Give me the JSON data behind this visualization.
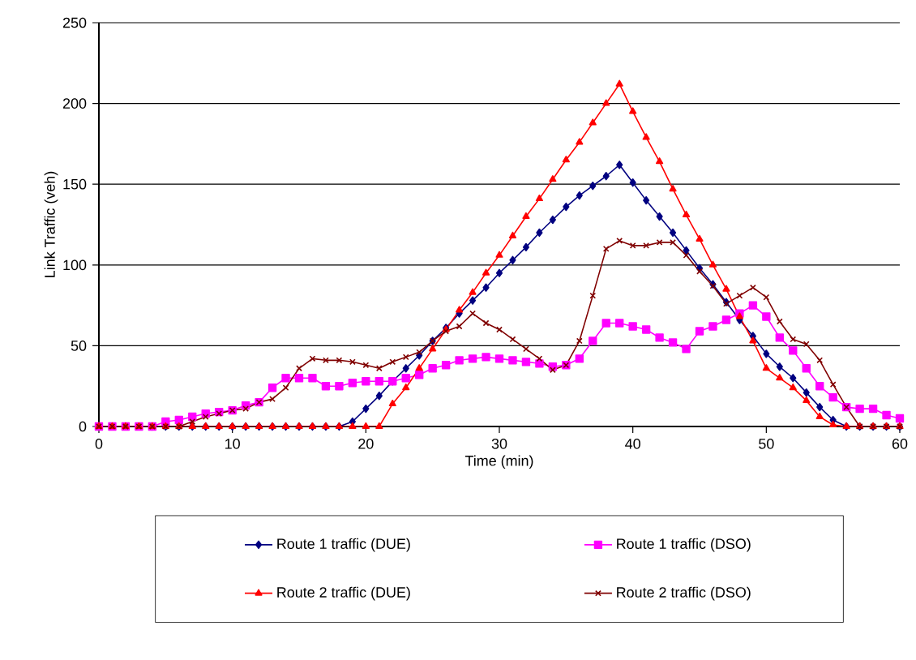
{
  "chart_data": {
    "type": "line",
    "xlabel": "Time (min)",
    "ylabel": "Link Traffic (veh)",
    "x": [
      0,
      1,
      2,
      3,
      4,
      5,
      6,
      7,
      8,
      9,
      10,
      11,
      12,
      13,
      14,
      15,
      16,
      17,
      18,
      19,
      20,
      21,
      22,
      23,
      24,
      25,
      26,
      27,
      28,
      29,
      30,
      31,
      32,
      33,
      34,
      35,
      36,
      37,
      38,
      39,
      40,
      41,
      42,
      43,
      44,
      45,
      46,
      47,
      48,
      49,
      50,
      51,
      52,
      53,
      54,
      55,
      56,
      57,
      58,
      59,
      60
    ],
    "series": [
      {
        "name": "Route 1 traffic (DUE)",
        "color": "#000080",
        "marker": "diamond",
        "values": [
          null,
          null,
          null,
          null,
          0,
          0,
          0,
          0,
          0,
          0,
          0,
          0,
          0,
          0,
          0,
          0,
          0,
          0,
          0,
          3,
          11,
          19,
          28,
          36,
          44,
          53,
          61,
          70,
          78,
          86,
          95,
          103,
          111,
          120,
          128,
          136,
          143,
          149,
          155,
          162,
          151,
          140,
          130,
          120,
          109,
          98,
          88,
          77,
          66,
          56,
          45,
          37,
          30,
          21,
          12,
          4,
          0,
          0,
          0,
          0,
          0
        ]
      },
      {
        "name": "Route 1 traffic (DSO)",
        "color": "#ff00ff",
        "marker": "square",
        "values": [
          0,
          0,
          0,
          0,
          0,
          3,
          4,
          6,
          8,
          9,
          10,
          13,
          15,
          24,
          30,
          30,
          30,
          25,
          25,
          27,
          28,
          28,
          28,
          30,
          32,
          36,
          38,
          41,
          42,
          43,
          42,
          41,
          40,
          39,
          37,
          38,
          42,
          53,
          64,
          64,
          62,
          60,
          55,
          52,
          48,
          59,
          62,
          66,
          70,
          75,
          68,
          55,
          47,
          36,
          25,
          18,
          12,
          11,
          11,
          7,
          5
        ]
      },
      {
        "name": "Route 2 traffic (DUE)",
        "color": "#ff0000",
        "marker": "triangle",
        "values": [
          0,
          0,
          0,
          0,
          0,
          0,
          0,
          0,
          0,
          0,
          0,
          0,
          0,
          0,
          0,
          0,
          0,
          0,
          0,
          0,
          0,
          0,
          14,
          24,
          36,
          48,
          60,
          72,
          83,
          95,
          106,
          118,
          130,
          141,
          153,
          165,
          176,
          188,
          200,
          212,
          195,
          179,
          164,
          147,
          131,
          116,
          100,
          85,
          68,
          53,
          36,
          30,
          24,
          16,
          6,
          1,
          0,
          0,
          0,
          0,
          0
        ]
      },
      {
        "name": "Route 2 traffic (DSO)",
        "color": "#800000",
        "marker": "cross",
        "values": [
          0,
          0,
          0,
          0,
          0,
          0,
          0,
          3,
          6,
          8,
          10,
          11,
          15,
          17,
          24,
          36,
          42,
          41,
          41,
          40,
          38,
          36,
          40,
          43,
          46,
          53,
          59,
          62,
          70,
          64,
          60,
          54,
          48,
          42,
          35,
          38,
          53,
          81,
          110,
          115,
          112,
          112,
          114,
          114,
          106,
          96,
          87,
          76,
          81,
          86,
          80,
          65,
          54,
          51,
          41,
          26,
          12,
          0,
          0,
          0,
          0
        ]
      }
    ],
    "xlim": [
      0,
      60
    ],
    "xticks": [
      0,
      10,
      20,
      30,
      40,
      50,
      60
    ],
    "ylim": [
      0,
      250
    ],
    "yticks": [
      0,
      50,
      100,
      150,
      200,
      250
    ],
    "grid": "y",
    "legend": "bottom"
  }
}
